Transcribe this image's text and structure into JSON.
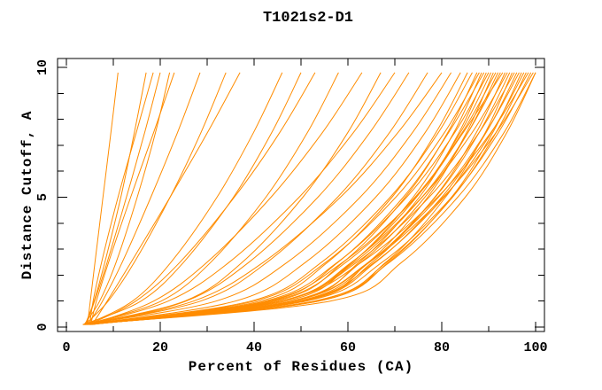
{
  "figure": {
    "title": "T1021s2-D1",
    "x_axis_label": "Percent of Residues (CA)",
    "y_axis_label": "Distance Cutoff, A"
  },
  "chart_data": {
    "type": "line",
    "title": "T1021s2-D1",
    "xlabel": "Percent of Residues (CA)",
    "ylabel": "Distance Cutoff, A",
    "xlim": [
      0,
      100
    ],
    "ylim": [
      0,
      10
    ],
    "x_major_ticks": [
      0,
      20,
      40,
      60,
      80,
      100
    ],
    "x_minor_ticks": [
      10,
      30,
      50,
      70,
      90
    ],
    "y_major_ticks": [
      0,
      5,
      10
    ],
    "y_minor_ticks": [
      1,
      2,
      3,
      4,
      6,
      7,
      8,
      9
    ],
    "grid": false,
    "legend": "none",
    "curve_color": "#ff8c00",
    "axis_color": "#000000",
    "background": "#ffffff",
    "num_curves": 50,
    "curve_y_levels": [
      0.1,
      1,
      2.5,
      5,
      7.5,
      9.8
    ],
    "curves_x_at_levels": [
      [
        4.5,
        5.1,
        6.1,
        7.8,
        9.5,
        11.0
      ],
      [
        4.0,
        5.9,
        8.2,
        11.6,
        14.5,
        17.0
      ],
      [
        5.0,
        5.7,
        7.5,
        11.0,
        14.9,
        18.5
      ],
      [
        4.2,
        6.0,
        8.7,
        12.8,
        16.7,
        20.0
      ],
      [
        3.8,
        7.1,
        10.6,
        15.1,
        19.0,
        22.0
      ],
      [
        5.2,
        6.4,
        9.0,
        13.7,
        18.6,
        23.0
      ],
      [
        4.6,
        7.7,
        11.9,
        18.0,
        23.7,
        28.5
      ],
      [
        4.0,
        8.9,
        14.5,
        22.1,
        28.7,
        34.0
      ],
      [
        5.5,
        8.7,
        13.8,
        22.1,
        30.1,
        37.0
      ],
      [
        4.3,
        14.1,
        22.3,
        32.1,
        39.9,
        46.0
      ],
      [
        3.6,
        15.9,
        25.0,
        35.6,
        43.8,
        50.0
      ],
      [
        4.8,
        14.8,
        24.2,
        35.8,
        45.5,
        53.0
      ],
      [
        4.1,
        20.2,
        30.8,
        42.5,
        51.4,
        58.0
      ],
      [
        5.0,
        18.6,
        30.0,
        43.6,
        54.6,
        63.0
      ],
      [
        3.9,
        25.2,
        37.5,
        50.4,
        60.0,
        67.0
      ],
      [
        4.4,
        21.7,
        34.7,
        49.6,
        61.2,
        70.0
      ],
      [
        5.3,
        25.5,
        38.9,
        53.6,
        64.7,
        73.0
      ],
      [
        4.0,
        28.6,
        42.8,
        57.8,
        68.9,
        77.0
      ],
      [
        4.7,
        27.1,
        42.0,
        58.4,
        70.7,
        80.0
      ],
      [
        3.5,
        31.9,
        47.1,
        62.6,
        73.8,
        82.0
      ],
      [
        4.2,
        36.0,
        51.0,
        65.9,
        76.5,
        84.0
      ],
      [
        5.1,
        41.3,
        55.7,
        69.4,
        78.8,
        85.5
      ],
      [
        3.8,
        39.3,
        54.4,
        69.0,
        79.3,
        86.5
      ],
      [
        4.5,
        44.7,
        59.0,
        72.2,
        81.3,
        87.5
      ],
      [
        5.5,
        40.1,
        55.3,
        70.2,
        80.6,
        88.0
      ],
      [
        4.0,
        46.9,
        61.0,
        73.9,
        82.6,
        88.5
      ],
      [
        4.8,
        43.5,
        57.9,
        71.8,
        81.5,
        89.0
      ],
      [
        3.6,
        48.3,
        62.4,
        75.2,
        83.7,
        89.5
      ],
      [
        5.0,
        42.3,
        57.8,
        72.5,
        82.8,
        90.0
      ],
      [
        4.3,
        46.0,
        60.9,
        74.6,
        84.0,
        90.5
      ],
      [
        3.9,
        50.3,
        64.4,
        77.0,
        85.3,
        91.0
      ],
      [
        5.4,
        44.1,
        59.6,
        74.3,
        84.4,
        91.5
      ],
      [
        4.6,
        47.9,
        62.8,
        76.4,
        85.6,
        92.0
      ],
      [
        4.1,
        45.8,
        61.4,
        75.8,
        85.6,
        92.5
      ],
      [
        5.2,
        42.9,
        58.9,
        74.5,
        84.6,
        93.0
      ],
      [
        3.7,
        50.4,
        65.2,
        78.5,
        87.4,
        93.5
      ],
      [
        4.4,
        45.6,
        60.8,
        75.8,
        86.5,
        94.0
      ],
      [
        5.0,
        49.4,
        64.6,
        78.6,
        88.0,
        94.5
      ],
      [
        4.0,
        53.7,
        68.1,
        80.8,
        89.3,
        95.0
      ],
      [
        4.7,
        45.6,
        61.9,
        77.3,
        88.0,
        95.5
      ],
      [
        3.5,
        50.5,
        65.9,
        80.0,
        89.5,
        96.0
      ],
      [
        5.3,
        48.3,
        64.4,
        79.3,
        89.4,
        96.5
      ],
      [
        4.2,
        53.7,
        68.7,
        82.1,
        90.9,
        97.0
      ],
      [
        4.9,
        49.7,
        65.7,
        80.5,
        90.6,
        97.5
      ],
      [
        3.8,
        52.8,
        68.3,
        82.3,
        91.6,
        98.0
      ],
      [
        4.5,
        45.8,
        62.9,
        79.1,
        90.5,
        98.5
      ],
      [
        4.0,
        51.1,
        67.3,
        82.1,
        92.1,
        99.0
      ],
      [
        5.1,
        48.5,
        64.6,
        80.3,
        91.6,
        99.5
      ],
      [
        4.3,
        52.9,
        68.9,
        83.4,
        93.3,
        100.0
      ],
      [
        3.6,
        56.2,
        71.5,
        85.0,
        93.9,
        100.0
      ]
    ]
  }
}
